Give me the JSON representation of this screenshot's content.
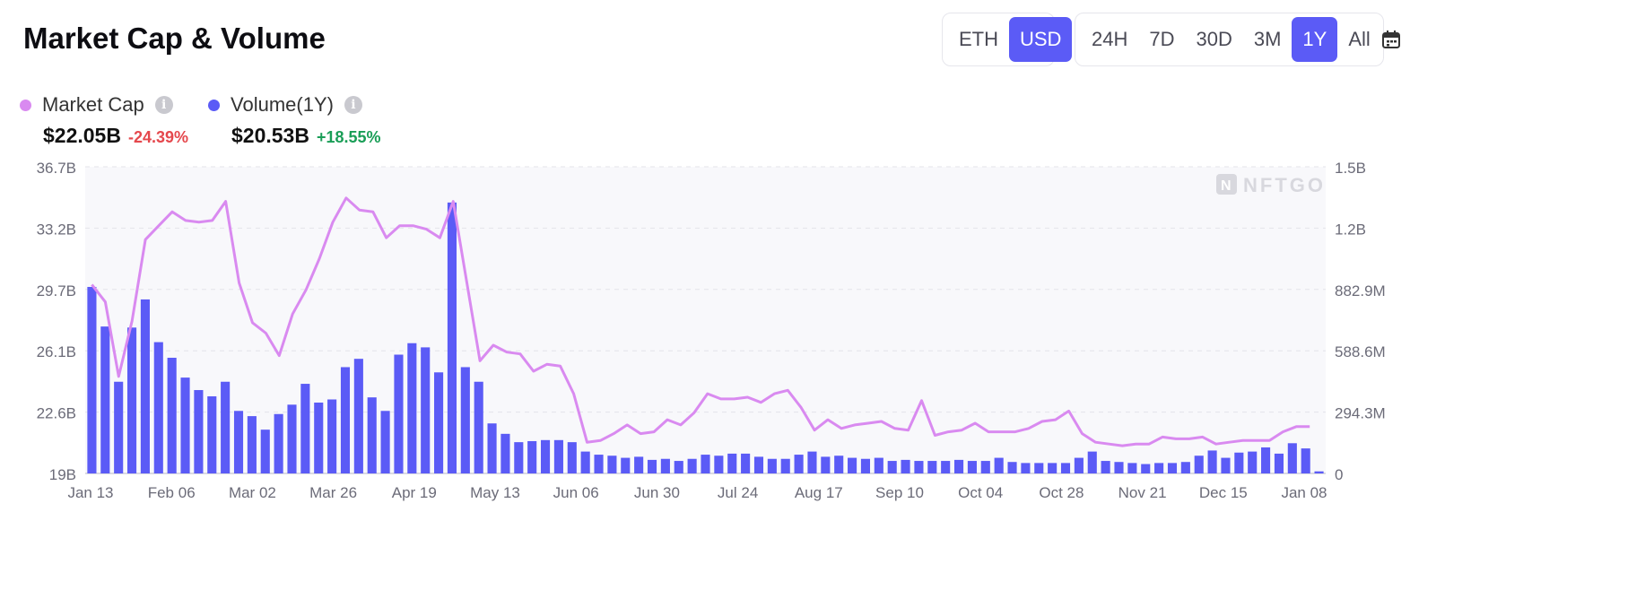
{
  "header": {
    "title": "Market Cap & Volume",
    "currency_options": [
      "ETH",
      "USD"
    ],
    "currency_active": "USD",
    "range_options": [
      "24H",
      "7D",
      "30D",
      "3M",
      "1Y",
      "All"
    ],
    "range_active": "1Y",
    "calendar_icon": "calendar-icon"
  },
  "legend": {
    "market_cap": {
      "label": "Market Cap",
      "value": "$22.05B",
      "change": "-24.39%",
      "color": "#d98af0",
      "change_color": "#e5484d"
    },
    "volume": {
      "label": "Volume(1Y)",
      "value": "$20.53B",
      "change": "+18.55%",
      "color": "#5b5bf6",
      "change_color": "#1a9e57"
    }
  },
  "watermark": "NFTGO",
  "chart_data": {
    "type": "bar+line",
    "x_tick_labels": [
      "Jan 13",
      "Feb 06",
      "Mar 02",
      "Mar 26",
      "Apr 19",
      "May 13",
      "Jun 06",
      "Jun 30",
      "Jul 24",
      "Aug 17",
      "Sep 10",
      "Oct 04",
      "Oct 28",
      "Nov 21",
      "Dec 15",
      "Jan 08"
    ],
    "y_left_ticks": [
      "19B",
      "22.6B",
      "26.1B",
      "29.7B",
      "33.2B",
      "36.7B"
    ],
    "y_left_range": [
      19,
      36.7
    ],
    "y_right_ticks": [
      "0",
      "294.3M",
      "588.6M",
      "882.9M",
      "1.2B",
      "1.5B"
    ],
    "y_right_range": [
      0,
      1471.5
    ],
    "grid": true,
    "series": [
      {
        "name": "Volume(1Y)",
        "type": "bar",
        "unit": "M",
        "values": [
          895,
          705,
          440,
          700,
          835,
          630,
          555,
          460,
          400,
          370,
          440,
          300,
          275,
          210,
          285,
          330,
          430,
          340,
          355,
          510,
          550,
          365,
          300,
          570,
          625,
          605,
          485,
          1300,
          510,
          440,
          240,
          190,
          150,
          155,
          160,
          160,
          150,
          105,
          90,
          85,
          75,
          80,
          65,
          70,
          60,
          70,
          90,
          85,
          95,
          95,
          80,
          70,
          70,
          90,
          105,
          80,
          85,
          75,
          70,
          75,
          60,
          65,
          60,
          60,
          60,
          65,
          60,
          60,
          75,
          55,
          50,
          50,
          50,
          50,
          75,
          105,
          60,
          55,
          50,
          45,
          50,
          50,
          55,
          85,
          110,
          75,
          100,
          105,
          125,
          95,
          145,
          120,
          10
        ]
      },
      {
        "name": "Market Cap",
        "type": "line",
        "unit": "B",
        "values": [
          29.9,
          28.9,
          24.6,
          27.8,
          32.5,
          33.3,
          34.1,
          33.6,
          33.5,
          33.6,
          34.7,
          30.0,
          27.7,
          27.1,
          25.8,
          28.2,
          29.6,
          31.4,
          33.5,
          34.9,
          34.2,
          34.1,
          32.6,
          33.3,
          33.3,
          33.1,
          32.6,
          34.7,
          30.1,
          25.5,
          26.4,
          26.0,
          25.9,
          24.9,
          25.3,
          25.2,
          23.6,
          20.8,
          20.9,
          21.3,
          21.8,
          21.3,
          21.4,
          22.1,
          21.8,
          22.5,
          23.6,
          23.3,
          23.3,
          23.4,
          23.1,
          23.6,
          23.8,
          22.8,
          21.5,
          22.1,
          21.6,
          21.8,
          21.9,
          22.0,
          21.6,
          21.5,
          23.2,
          21.2,
          21.4,
          21.5,
          21.9,
          21.4,
          21.4,
          21.4,
          21.6,
          22.0,
          22.1,
          22.6,
          21.3,
          20.8,
          20.7,
          20.6,
          20.7,
          20.7,
          21.1,
          21.0,
          21.0,
          21.1,
          20.7,
          20.8,
          20.9,
          20.9,
          20.9,
          21.4,
          21.7,
          21.7
        ]
      }
    ]
  }
}
